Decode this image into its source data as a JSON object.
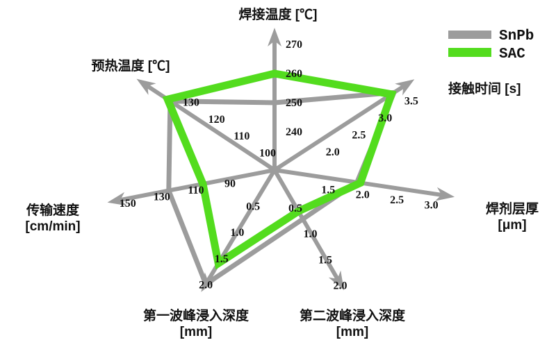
{
  "chart_data": {
    "type": "radar",
    "title": "",
    "background": "#ffffff",
    "axis_color": "#9c9c9c",
    "grid": false,
    "legend_position": "top-right",
    "legend": [
      {
        "label": "SnPb",
        "color": "#9c9c9c"
      },
      {
        "label": "SAC",
        "color": "#53dc1e"
      }
    ],
    "axes": [
      {
        "id": "solder-temp",
        "label": "焊接温度 [℃]",
        "label_lines": [
          "焊接温度 [℃]"
        ],
        "ticks": [
          "240",
          "250",
          "260",
          "270"
        ]
      },
      {
        "id": "contact-time",
        "label": "接触时间 [s]",
        "label_lines": [
          "接触时间 [s]"
        ],
        "ticks": [
          "2.0",
          "2.5",
          "3.0",
          "3.5"
        ]
      },
      {
        "id": "flux-thickness",
        "label": "焊剂层厚 [μm]",
        "label_lines": [
          "焊剂层厚",
          "[μm]"
        ],
        "ticks": [
          "1.5",
          "2.0",
          "2.5",
          "3.0"
        ]
      },
      {
        "id": "wave2-depth",
        "label": "第二波峰浸入深度 [mm]",
        "label_lines": [
          "第二波峰浸入深度",
          "[mm]"
        ],
        "ticks": [
          "0.5",
          "1.0",
          "1.5",
          "2.0"
        ]
      },
      {
        "id": "wave1-depth",
        "label": "第一波峰浸入深度 [mm]",
        "label_lines": [
          "第一波峰浸入深度",
          "[mm]"
        ],
        "ticks": [
          "0.5",
          "1.0",
          "1.5",
          "2.0"
        ]
      },
      {
        "id": "conveyor-speed",
        "label": "传输速度 [cm/min]",
        "label_lines": [
          "传输速度",
          "[cm/min]"
        ],
        "ticks": [
          "90",
          "110",
          "130",
          "150"
        ]
      },
      {
        "id": "preheat-temp",
        "label": "预热温度 [℃]",
        "label_lines": [
          "预热温度 [℃]"
        ],
        "ticks": [
          "100",
          "110",
          "120",
          "130"
        ]
      }
    ],
    "series": [
      {
        "name": "SnPb",
        "color": "#9c9c9c",
        "stroke_width": 7,
        "values": [
          250,
          3.5,
          2.0,
          0.75,
          2.0,
          130,
          130
        ]
      },
      {
        "name": "SAC",
        "color": "#53dc1e",
        "stroke_width": 11,
        "values": [
          260,
          3.45,
          2.05,
          0.6,
          1.6,
          110,
          131
        ]
      }
    ]
  }
}
